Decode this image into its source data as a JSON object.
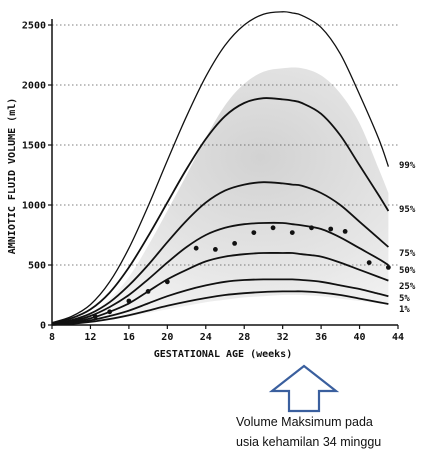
{
  "chart_data": {
    "type": "line",
    "xlabel": "GESTATIONAL AGE (weeks)",
    "ylabel": "AMNIOTIC FLUID VOLUME (ml)",
    "xlim": [
      8,
      44
    ],
    "ylim": [
      0,
      2500
    ],
    "x_ticks": [
      "8",
      "12",
      "16",
      "20",
      "24",
      "28",
      "32",
      "36",
      "40",
      "44"
    ],
    "y_ticks": [
      "0",
      "500",
      "1000",
      "1500",
      "2000",
      "2500"
    ],
    "grid": "horizontal dotted",
    "series": [
      {
        "name": "99%",
        "x": [
          8,
          10,
          12,
          14,
          16,
          18,
          20,
          22,
          24,
          26,
          28,
          30,
          32,
          33,
          34,
          36,
          38,
          40,
          42,
          43
        ],
        "values": [
          20,
          70,
          170,
          360,
          640,
          990,
          1370,
          1740,
          2070,
          2330,
          2500,
          2590,
          2610,
          2600,
          2580,
          2480,
          2260,
          1920,
          1550,
          1320
        ]
      },
      {
        "name": "95%",
        "x": [
          8,
          10,
          12,
          14,
          16,
          18,
          20,
          22,
          24,
          26,
          28,
          30,
          32,
          33,
          34,
          36,
          38,
          40,
          42,
          43
        ],
        "values": [
          15,
          55,
          130,
          270,
          480,
          740,
          1020,
          1300,
          1550,
          1740,
          1850,
          1890,
          1880,
          1870,
          1850,
          1760,
          1580,
          1330,
          1080,
          950
        ]
      },
      {
        "name": "75%",
        "x": [
          8,
          10,
          12,
          14,
          16,
          18,
          20,
          22,
          24,
          26,
          28,
          30,
          32,
          33,
          34,
          36,
          38,
          40,
          42,
          43
        ],
        "values": [
          10,
          40,
          95,
          190,
          330,
          500,
          690,
          870,
          1020,
          1120,
          1170,
          1190,
          1180,
          1170,
          1160,
          1100,
          1000,
          860,
          720,
          650
        ]
      },
      {
        "name": "50%",
        "x": [
          8,
          10,
          12,
          14,
          16,
          18,
          20,
          22,
          24,
          26,
          28,
          30,
          32,
          33,
          34,
          36,
          38,
          40,
          42,
          43
        ],
        "values": [
          8,
          30,
          75,
          150,
          250,
          380,
          520,
          650,
          750,
          810,
          840,
          850,
          850,
          840,
          830,
          800,
          730,
          640,
          550,
          500
        ]
      },
      {
        "name": "25%",
        "x": [
          8,
          10,
          12,
          14,
          16,
          18,
          20,
          22,
          24,
          26,
          28,
          30,
          32,
          33,
          34,
          36,
          38,
          40,
          42,
          43
        ],
        "values": [
          5,
          22,
          55,
          110,
          180,
          280,
          380,
          460,
          530,
          570,
          590,
          600,
          600,
          600,
          590,
          570,
          520,
          460,
          400,
          370
        ]
      },
      {
        "name": "5%",
        "x": [
          8,
          10,
          12,
          14,
          16,
          18,
          20,
          22,
          24,
          26,
          28,
          30,
          32,
          33,
          34,
          36,
          38,
          40,
          42,
          43
        ],
        "values": [
          3,
          15,
          38,
          75,
          120,
          180,
          240,
          290,
          330,
          360,
          375,
          380,
          380,
          380,
          375,
          360,
          330,
          300,
          260,
          240
        ]
      },
      {
        "name": "1%",
        "x": [
          8,
          10,
          12,
          14,
          16,
          18,
          20,
          22,
          24,
          26,
          28,
          30,
          32,
          33,
          34,
          36,
          38,
          40,
          42,
          43
        ],
        "values": [
          2,
          10,
          26,
          50,
          82,
          120,
          160,
          195,
          225,
          250,
          265,
          275,
          280,
          280,
          280,
          270,
          250,
          220,
          190,
          175
        ]
      }
    ],
    "band": {
      "x": [
        8,
        10,
        12,
        14,
        16,
        18,
        20,
        22,
        24,
        26,
        28,
        30,
        32,
        34,
        36,
        38,
        40,
        42,
        43
      ],
      "lower": [
        2,
        10,
        20,
        40,
        70,
        100,
        130,
        160,
        190,
        210,
        230,
        240,
        250,
        250,
        240,
        220,
        200,
        180,
        170
      ],
      "upper": [
        10,
        40,
        100,
        220,
        400,
        660,
        950,
        1250,
        1560,
        1830,
        2010,
        2110,
        2140,
        2140,
        2080,
        1930,
        1680,
        1300,
        1100
      ]
    },
    "points": {
      "x": [
        10,
        11,
        12.5,
        14,
        16,
        18,
        20,
        23,
        25,
        27,
        29,
        31,
        33,
        35,
        37,
        38.5,
        41,
        43
      ],
      "y": [
        20,
        40,
        70,
        110,
        200,
        280,
        360,
        640,
        630,
        680,
        770,
        810,
        770,
        810,
        800,
        780,
        520,
        480
      ]
    }
  },
  "annotation": {
    "line1": "Volume Maksimum pada",
    "line2": "usia kehamilan 34 minggu",
    "arrow_color": "#3a5f9e"
  }
}
